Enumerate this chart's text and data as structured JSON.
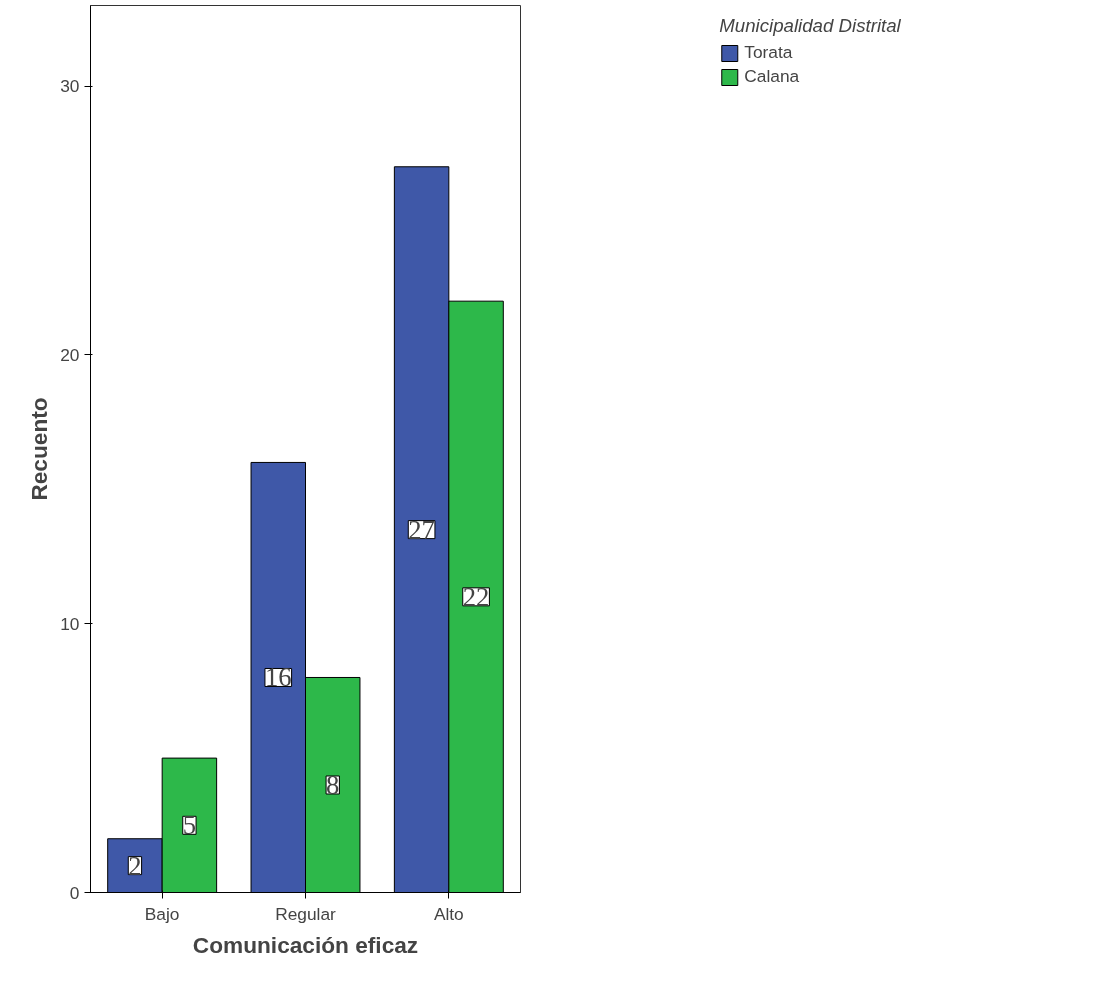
{
  "chart_data": {
    "type": "bar",
    "xlabel": "Comunicación eficaz",
    "ylabel": "Recuento",
    "legend_title": "Municipalidad Distrital",
    "legend": "top right",
    "data_labels": true,
    "categories": [
      "Bajo",
      "Regular",
      "Alto"
    ],
    "series": [
      {
        "name": "Torata",
        "color": "#3f58a8",
        "values": [
          2,
          16,
          27
        ]
      },
      {
        "name": "Calana",
        "color": "#2db84a",
        "values": [
          5,
          8,
          22
        ]
      }
    ],
    "ylim": [
      0,
      33
    ],
    "yticks": [
      0,
      10,
      20,
      30
    ]
  }
}
